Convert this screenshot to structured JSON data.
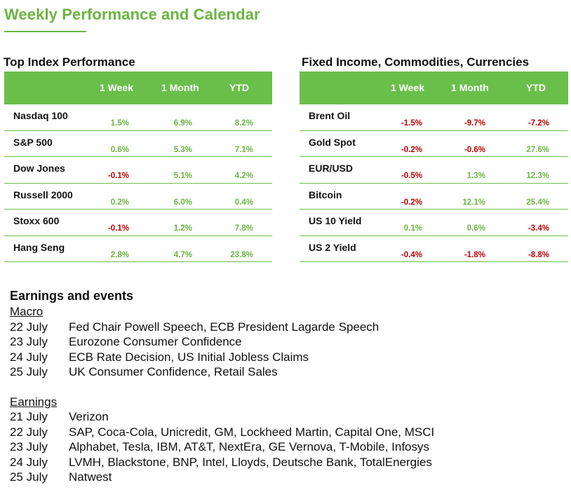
{
  "page_title": "Weekly Performance and Calendar",
  "index_table": {
    "heading": "Top Index Performance",
    "columns": [
      "1 Week",
      "1 Month",
      "YTD"
    ],
    "rows": [
      {
        "name": "Nasdaq 100",
        "w": "1.5%",
        "m": "6.9%",
        "y": "8.2%"
      },
      {
        "name": "S&P 500",
        "w": "0.6%",
        "m": "5.3%",
        "y": "7.1%"
      },
      {
        "name": "Dow Jones",
        "w": "-0.1%",
        "m": "5.1%",
        "y": "4.2%"
      },
      {
        "name": "Russell 2000",
        "w": "0.2%",
        "m": "6.0%",
        "y": "0.4%"
      },
      {
        "name": "Stoxx 600",
        "w": "-0.1%",
        "m": "1.2%",
        "y": "7.8%"
      },
      {
        "name": "Hang Seng",
        "w": "2.8%",
        "m": "4.7%",
        "y": "23.8%"
      }
    ]
  },
  "fixed_table": {
    "heading": "Fixed Income, Commodities, Currencies",
    "columns": [
      "1 Week",
      "1 Month",
      "YTD"
    ],
    "rows": [
      {
        "name": "Brent Oil",
        "w": "-1.5%",
        "m": "-9.7%",
        "y": "-7.2%"
      },
      {
        "name": "Gold Spot",
        "w": "-0.2%",
        "m": "-0.6%",
        "y": "27.6%"
      },
      {
        "name": "EUR/USD",
        "w": "-0.5%",
        "m": "1.3%",
        "y": "12.3%"
      },
      {
        "name": "Bitcoin",
        "w": "-0.2%",
        "m": "12.1%",
        "y": "25.4%"
      },
      {
        "name": "US 10 Yield",
        "w": "0.1%",
        "m": "0.6%",
        "y": "-3.4%"
      },
      {
        "name": "US 2 Yield",
        "w": "-0.4%",
        "m": "-1.8%",
        "y": "-8.8%"
      }
    ]
  },
  "events": {
    "title": "Earnings and events",
    "macro_label": "Macro",
    "macro": [
      {
        "date": "22  July",
        "text": "Fed Chair Powell Speech, ECB President Lagarde Speech"
      },
      {
        "date": "23  July",
        "text": "Eurozone Consumer Confidence"
      },
      {
        "date": "24  July",
        "text": "ECB Rate Decision, US Initial Jobless Claims"
      },
      {
        "date": "25 July",
        "text": "UK Consumer Confidence, Retail Sales"
      }
    ],
    "earnings_label": "Earnings",
    "earnings": [
      {
        "date": "21 July",
        "text": "Verizon"
      },
      {
        "date": "22 July",
        "text": "SAP, Coca-Cola, Unicredit, GM, Lockheed Martin, Capital One, MSCI"
      },
      {
        "date": "23 July",
        "text": "Alphabet, Tesla, IBM, AT&T, NextEra, GE Vernova, T-Mobile, Infosys"
      },
      {
        "date": "24 July",
        "text": "LVMH, Blackstone, BNP, Intel, Lloyds, Deutsche Bank, TotalEnergies"
      },
      {
        "date": "25 July",
        "text": "Natwest"
      }
    ]
  },
  "colors": {
    "accent": "#6abf4b",
    "negative": "#c00000",
    "positive": "#6ab540"
  }
}
